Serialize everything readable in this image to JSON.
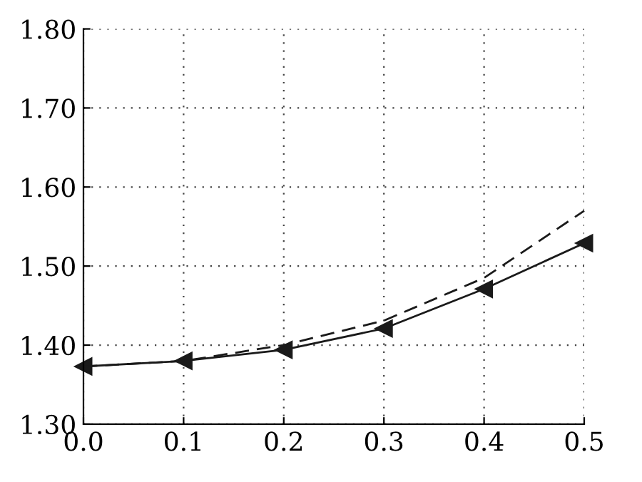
{
  "chart_data": {
    "type": "line",
    "x": [
      0.0,
      0.1,
      0.2,
      0.3,
      0.4,
      0.5
    ],
    "series": [
      {
        "color": "#1a1a1a",
        "values": [
          1.373,
          1.38,
          1.394,
          1.421,
          1.471,
          1.529
        ],
        "marker": "triangle",
        "line_style": "solid"
      },
      {
        "color": "#1a1a1a",
        "values": [
          1.373,
          1.38,
          1.4,
          1.431,
          1.485,
          1.57
        ],
        "marker": "none",
        "line_style": "dashed"
      }
    ],
    "xlim": [
      0.0,
      0.5
    ],
    "ylim": [
      1.3,
      1.8
    ],
    "xticks": [
      {
        "value": 0.0,
        "label": "0.0"
      },
      {
        "value": 0.1,
        "label": "0.1"
      },
      {
        "value": 0.2,
        "label": "0.2"
      },
      {
        "value": 0.3,
        "label": "0.3"
      },
      {
        "value": 0.4,
        "label": "0.4"
      },
      {
        "value": 0.5,
        "label": "0.5"
      }
    ],
    "yticks": [
      {
        "value": 1.3,
        "label": "1.30"
      },
      {
        "value": 1.4,
        "label": "1.40"
      },
      {
        "value": 1.5,
        "label": "1.50"
      },
      {
        "value": 1.6,
        "label": "1.60"
      },
      {
        "value": 1.7,
        "label": "1.70"
      },
      {
        "value": 1.8,
        "label": "1.80"
      }
    ],
    "grid": true
  }
}
